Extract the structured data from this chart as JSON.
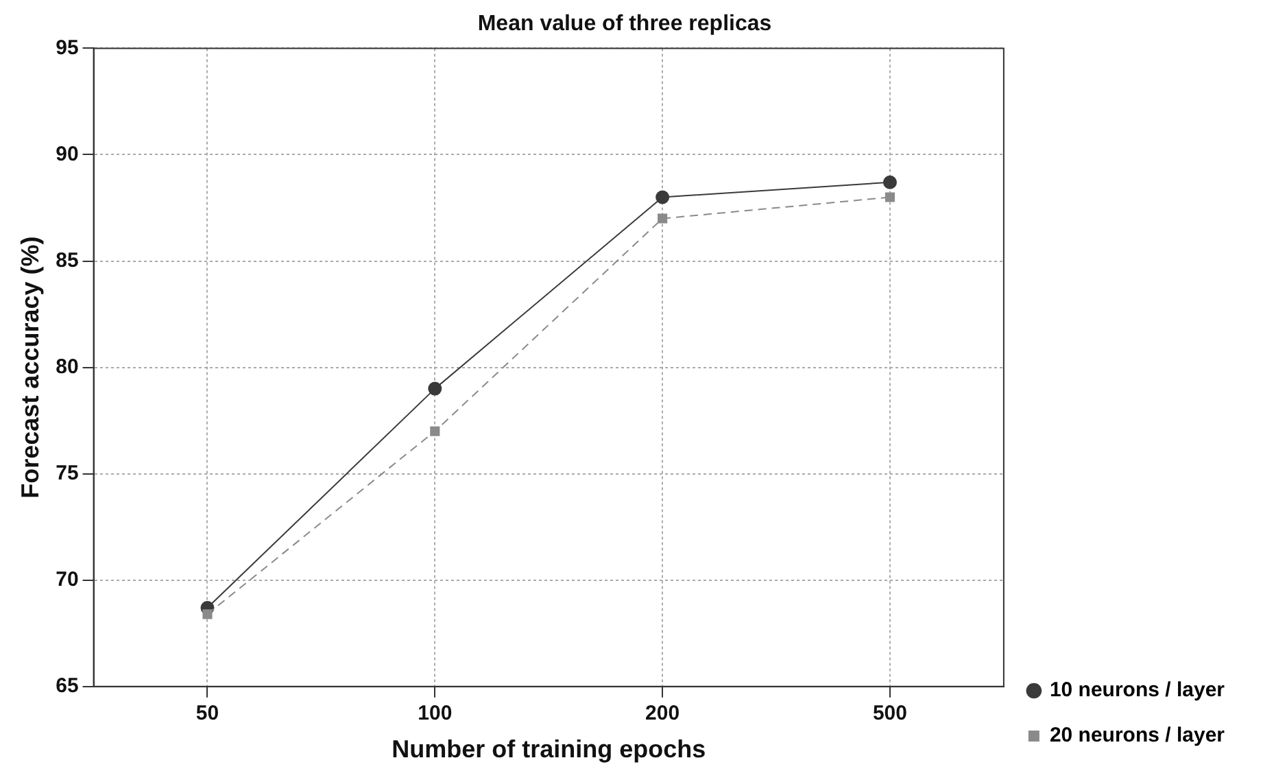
{
  "chart_data": {
    "type": "line",
    "title": "Mean value of three replicas",
    "xlabel": "Number of training epochs",
    "ylabel": "Forecast accuracy (%)",
    "categories": [
      "50",
      "100",
      "200",
      "500"
    ],
    "series": [
      {
        "name": "10 neurons / layer",
        "color": "#3a3a3a",
        "values": [
          68.7,
          79.0,
          88.0,
          88.7
        ],
        "marker": "circle",
        "line_style": "solid"
      },
      {
        "name": "20 neurons / layer",
        "color": "#8a8a8a",
        "values": [
          68.4,
          77.0,
          87.0,
          88.0
        ],
        "marker": "square",
        "line_style": "dashed"
      }
    ],
    "ylim": [
      65,
      95
    ],
    "yticks": [
      65,
      70,
      75,
      80,
      85,
      90,
      95
    ],
    "grid": true,
    "legend": "bottom right"
  }
}
